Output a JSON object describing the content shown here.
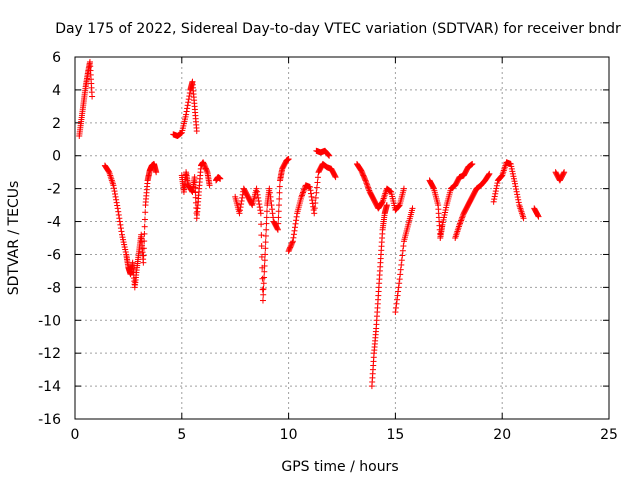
{
  "chart_data": {
    "type": "scatter",
    "title": "Day 175 of 2022, Sidereal Day-to-day VTEC variation (SDTVAR) for receiver bndr",
    "xlabel": "GPS time / hours",
    "ylabel": "SDTVAR / TECUs",
    "xlim": [
      0,
      25
    ],
    "ylim": [
      -16,
      6
    ],
    "xticks": [
      0,
      5,
      10,
      15,
      20,
      25
    ],
    "yticks": [
      -16,
      -14,
      -12,
      -10,
      -8,
      -6,
      -4,
      -2,
      0,
      2,
      4,
      6
    ],
    "grid": true,
    "marker": "+",
    "marker_color": "#ff0000",
    "series": [
      {
        "name": "SDTVAR",
        "segments": [
          [
            [
              0.2,
              1.2
            ],
            [
              0.3,
              2.2
            ],
            [
              0.4,
              3.2
            ],
            [
              0.5,
              4.2
            ],
            [
              0.6,
              5.0
            ],
            [
              0.7,
              5.7
            ],
            [
              0.8,
              3.6
            ]
          ],
          [
            [
              1.4,
              -0.6
            ],
            [
              1.6,
              -1.0
            ],
            [
              1.8,
              -1.8
            ],
            [
              2.0,
              -3.2
            ],
            [
              2.2,
              -4.8
            ],
            [
              2.4,
              -6.0
            ],
            [
              2.5,
              -6.8
            ],
            [
              2.6,
              -7.2
            ],
            [
              2.7,
              -6.5
            ],
            [
              2.8,
              -8.0
            ],
            [
              2.9,
              -6.8
            ],
            [
              3.0,
              -5.8
            ],
            [
              3.1,
              -4.8
            ],
            [
              3.2,
              -6.5
            ],
            [
              3.3,
              -3.0
            ],
            [
              3.4,
              -1.5
            ],
            [
              3.5,
              -0.9
            ],
            [
              3.6,
              -0.6
            ],
            [
              3.7,
              -0.5
            ],
            [
              3.8,
              -1.0
            ]
          ],
          [
            [
              4.6,
              1.3
            ],
            [
              4.8,
              1.2
            ],
            [
              5.0,
              1.4
            ],
            [
              5.2,
              2.5
            ],
            [
              5.4,
              4.0
            ],
            [
              5.5,
              4.5
            ],
            [
              5.6,
              3.0
            ],
            [
              5.7,
              1.5
            ]
          ],
          [
            [
              5.0,
              -1.2
            ],
            [
              5.1,
              -2.2
            ],
            [
              5.2,
              -1.0
            ],
            [
              5.3,
              -1.8
            ],
            [
              5.5,
              -2.2
            ],
            [
              5.6,
              -1.3
            ],
            [
              5.7,
              -3.8
            ],
            [
              5.8,
              -2.2
            ],
            [
              5.9,
              -0.6
            ],
            [
              6.0,
              -0.4
            ],
            [
              6.2,
              -1.0
            ],
            [
              6.3,
              -1.8
            ]
          ],
          [
            [
              6.6,
              -1.5
            ],
            [
              6.7,
              -1.3
            ],
            [
              6.8,
              -1.4
            ]
          ],
          [
            [
              7.5,
              -2.5
            ],
            [
              7.7,
              -3.5
            ],
            [
              7.9,
              -2.0
            ],
            [
              8.1,
              -2.5
            ],
            [
              8.3,
              -3.0
            ],
            [
              8.5,
              -2.0
            ],
            [
              8.7,
              -3.5
            ],
            [
              8.8,
              -8.8
            ],
            [
              8.9,
              -6.0
            ],
            [
              9.0,
              -3.0
            ],
            [
              9.1,
              -2.0
            ],
            [
              9.3,
              -4.0
            ],
            [
              9.5,
              -4.5
            ],
            [
              9.6,
              -1.5
            ],
            [
              9.7,
              -0.8
            ],
            [
              9.9,
              -0.3
            ],
            [
              10.0,
              -0.2
            ]
          ],
          [
            [
              10.0,
              -5.8
            ],
            [
              10.2,
              -5.2
            ],
            [
              10.4,
              -3.5
            ],
            [
              10.6,
              -2.5
            ],
            [
              10.8,
              -1.8
            ],
            [
              11.0,
              -1.9
            ],
            [
              11.2,
              -3.5
            ],
            [
              11.4,
              -1.0
            ],
            [
              11.6,
              -0.5
            ],
            [
              11.8,
              -0.7
            ],
            [
              12.0,
              -0.8
            ],
            [
              12.2,
              -1.3
            ]
          ],
          [
            [
              11.3,
              0.3
            ],
            [
              11.5,
              0.2
            ],
            [
              11.7,
              0.3
            ],
            [
              11.9,
              0.0
            ]
          ],
          [
            [
              13.2,
              -0.5
            ],
            [
              13.4,
              -0.9
            ],
            [
              13.6,
              -1.5
            ],
            [
              13.8,
              -2.2
            ],
            [
              14.0,
              -2.7
            ],
            [
              14.2,
              -3.2
            ],
            [
              14.4,
              -2.8
            ],
            [
              14.6,
              -2.0
            ],
            [
              14.8,
              -2.2
            ],
            [
              15.0,
              -3.3
            ],
            [
              15.2,
              -3.0
            ],
            [
              15.4,
              -2.0
            ]
          ],
          [
            [
              13.9,
              -14.0
            ],
            [
              14.0,
              -12.0
            ],
            [
              14.1,
              -10.5
            ],
            [
              14.2,
              -8.5
            ],
            [
              14.3,
              -6.5
            ],
            [
              14.4,
              -4.5
            ],
            [
              14.5,
              -3.5
            ],
            [
              14.6,
              -3.0
            ]
          ],
          [
            [
              15.0,
              -9.5
            ],
            [
              15.2,
              -7.5
            ],
            [
              15.4,
              -5.2
            ],
            [
              15.6,
              -4.2
            ],
            [
              15.8,
              -3.2
            ]
          ],
          [
            [
              16.6,
              -1.5
            ],
            [
              16.8,
              -2.0
            ],
            [
              17.0,
              -3.0
            ],
            [
              17.1,
              -5.0
            ],
            [
              17.2,
              -4.2
            ],
            [
              17.4,
              -3.0
            ],
            [
              17.6,
              -2.0
            ],
            [
              17.8,
              -1.8
            ],
            [
              18.0,
              -1.3
            ],
            [
              18.2,
              -1.2
            ],
            [
              18.4,
              -0.7
            ],
            [
              18.6,
              -0.5
            ]
          ],
          [
            [
              17.8,
              -5.0
            ],
            [
              18.0,
              -4.2
            ],
            [
              18.2,
              -3.5
            ],
            [
              18.4,
              -3.0
            ],
            [
              18.6,
              -2.5
            ],
            [
              18.8,
              -2.0
            ],
            [
              19.0,
              -1.8
            ],
            [
              19.2,
              -1.5
            ],
            [
              19.4,
              -1.1
            ]
          ],
          [
            [
              19.6,
              -2.8
            ],
            [
              19.8,
              -1.5
            ],
            [
              20.0,
              -1.2
            ],
            [
              20.2,
              -0.4
            ],
            [
              20.4,
              -0.5
            ],
            [
              20.6,
              -1.7
            ],
            [
              20.8,
              -3.0
            ],
            [
              21.0,
              -3.8
            ]
          ],
          [
            [
              21.5,
              -3.2
            ],
            [
              21.7,
              -3.7
            ]
          ],
          [
            [
              22.5,
              -1.0
            ],
            [
              22.7,
              -1.5
            ],
            [
              22.9,
              -1.0
            ]
          ]
        ]
      }
    ]
  }
}
